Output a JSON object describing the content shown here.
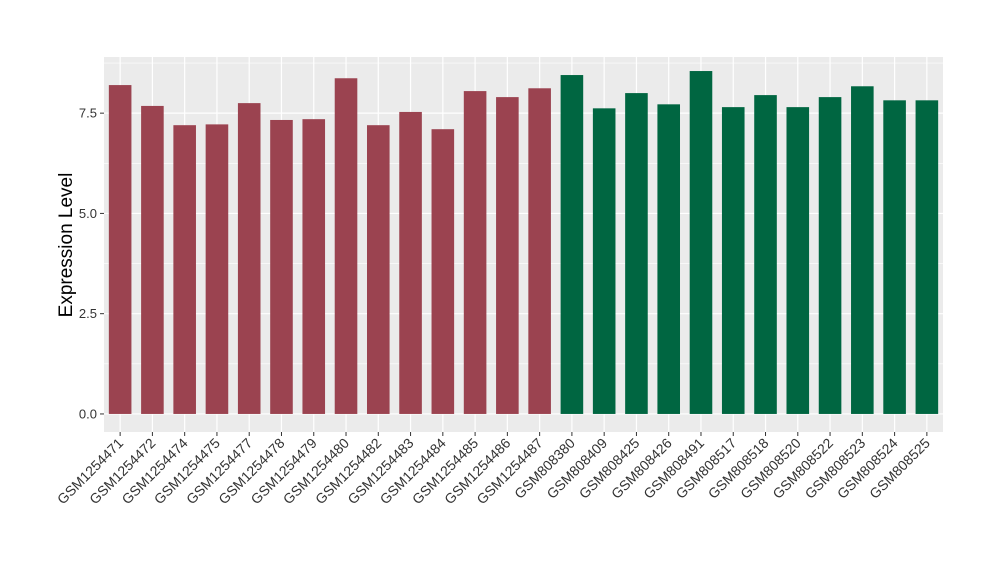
{
  "chart_data": {
    "type": "bar",
    "title": "",
    "xlabel": "",
    "ylabel": "Expression Level",
    "ylim": [
      -0.45,
      8.9
    ],
    "yticks": [
      0.0,
      2.5,
      5.0,
      7.5
    ],
    "ytick_labels": [
      "0.0",
      "2.5",
      "5.0",
      "7.5"
    ],
    "grid": true,
    "legend": "none",
    "categories": [
      "GSM1254471",
      "GSM1254472",
      "GSM1254474",
      "GSM1254475",
      "GSM1254477",
      "GSM1254478",
      "GSM1254479",
      "GSM1254480",
      "GSM1254482",
      "GSM1254483",
      "GSM1254484",
      "GSM1254485",
      "GSM1254486",
      "GSM1254487",
      "GSM808380",
      "GSM808409",
      "GSM808425",
      "GSM808426",
      "GSM808491",
      "GSM808517",
      "GSM808518",
      "GSM808520",
      "GSM808522",
      "GSM808523",
      "GSM808524",
      "GSM808525"
    ],
    "values": [
      8.2,
      7.68,
      7.2,
      7.22,
      7.75,
      7.33,
      7.35,
      8.37,
      7.2,
      7.53,
      7.1,
      8.05,
      7.9,
      8.12,
      8.45,
      7.62,
      8.0,
      7.72,
      8.55,
      7.65,
      7.95,
      7.65,
      7.9,
      8.17,
      7.82,
      7.82
    ],
    "group_colors": [
      "#9b4350",
      "#006641",
      "#006641"
    ],
    "bar_group_index": [
      0,
      0,
      0,
      0,
      0,
      0,
      0,
      0,
      0,
      0,
      0,
      0,
      0,
      0,
      1,
      1,
      1,
      1,
      1,
      1,
      1,
      1,
      1,
      1,
      1,
      1
    ],
    "panel_background": "#ebebeb",
    "grid_color": "#ffffff"
  }
}
